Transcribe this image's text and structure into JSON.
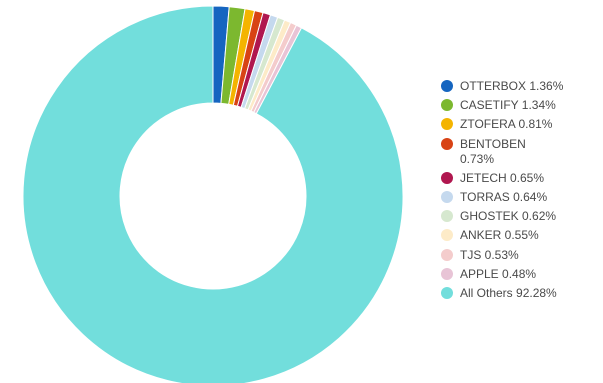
{
  "chart_data": {
    "type": "pie",
    "variant": "donut",
    "legend_position": "right",
    "slices": [
      {
        "label": "OTTERBOX",
        "value": 1.36,
        "display": "OTTERBOX 1.36%",
        "color": "#1565c0"
      },
      {
        "label": "CASETIFY",
        "value": 1.34,
        "display": "CASETIFY 1.34%",
        "color": "#7cb82f"
      },
      {
        "label": "ZTOFERA",
        "value": 0.81,
        "display": "ZTOFERA 0.81%",
        "color": "#f4b400"
      },
      {
        "label": "BENTOBEN",
        "value": 0.73,
        "display": "BENTOBEN 0.73%",
        "color": "#d84315"
      },
      {
        "label": "JETECH",
        "value": 0.65,
        "display": "JETECH 0.65%",
        "color": "#b0174f"
      },
      {
        "label": "TORRAS",
        "value": 0.64,
        "display": "TORRAS 0.64%",
        "color": "#c5d9ee"
      },
      {
        "label": "GHOSTEK",
        "value": 0.62,
        "display": "GHOSTEK 0.62%",
        "color": "#d6e8cf"
      },
      {
        "label": "ANKER",
        "value": 0.55,
        "display": "ANKER 0.55%",
        "color": "#fdebc8"
      },
      {
        "label": "TJS",
        "value": 0.53,
        "display": "TJS 0.53%",
        "color": "#f4cccc"
      },
      {
        "label": "APPLE",
        "value": 0.48,
        "display": "APPLE 0.48%",
        "color": "#e8c4d6"
      },
      {
        "label": "All Others",
        "value": 92.28,
        "display": "All Others 92.28%",
        "color": "#72dedc"
      }
    ]
  }
}
